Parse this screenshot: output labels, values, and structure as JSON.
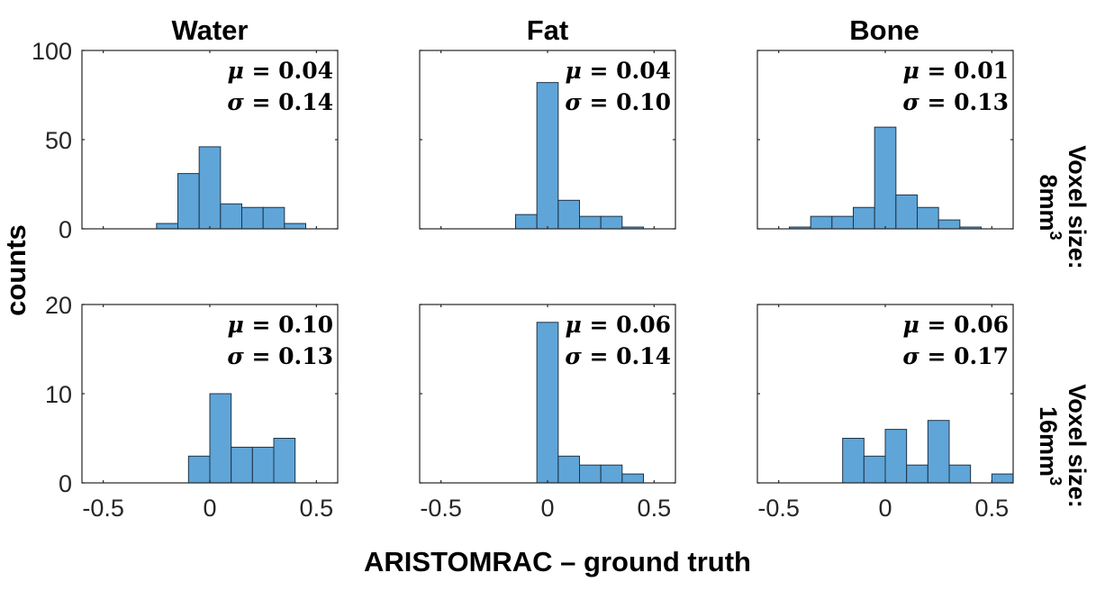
{
  "colors": {
    "bar": "#5fa5d8",
    "edge": "#1f3447",
    "axis": "#262626"
  },
  "chart_data": {
    "type": "bar",
    "layout": "2x3 histogram grid",
    "columns": [
      "Water",
      "Fat",
      "Bone"
    ],
    "rows": [
      {
        "label_line1": "Voxel size:",
        "label_line2": "8mm",
        "label_sup": "3",
        "ylim": [
          0,
          100
        ],
        "yticks": [
          "0",
          "50",
          "100"
        ]
      },
      {
        "label_line1": "Voxel size:",
        "label_line2": "16mm",
        "label_sup": "3",
        "ylim": [
          0,
          20
        ],
        "yticks": [
          "0",
          "10",
          "20"
        ]
      }
    ],
    "xlim": [
      -0.6,
      0.6
    ],
    "xticks": [
      "-0.5",
      "0",
      "0.5"
    ],
    "xtick_values": [
      -0.5,
      0,
      0.5
    ],
    "bin_width": 0.1,
    "xlabel": "ARISTOMRAC – ground truth",
    "ylabel": "counts",
    "panels": [
      {
        "row": 0,
        "col": 0,
        "mu": "0.04",
        "sigma": "0.14",
        "bins": [
          {
            "left": -0.25,
            "count": 3
          },
          {
            "left": -0.15,
            "count": 31
          },
          {
            "left": -0.05,
            "count": 46
          },
          {
            "left": 0.05,
            "count": 14
          },
          {
            "left": 0.15,
            "count": 12
          },
          {
            "left": 0.25,
            "count": 12
          },
          {
            "left": 0.35,
            "count": 3
          }
        ]
      },
      {
        "row": 0,
        "col": 1,
        "mu": "0.04",
        "sigma": "0.10",
        "bins": [
          {
            "left": -0.15,
            "count": 8
          },
          {
            "left": -0.05,
            "count": 82
          },
          {
            "left": 0.05,
            "count": 16
          },
          {
            "left": 0.15,
            "count": 7
          },
          {
            "left": 0.25,
            "count": 7
          },
          {
            "left": 0.35,
            "count": 1
          }
        ]
      },
      {
        "row": 0,
        "col": 2,
        "mu": "0.01",
        "sigma": "0.13",
        "bins": [
          {
            "left": -0.45,
            "count": 1
          },
          {
            "left": -0.35,
            "count": 7
          },
          {
            "left": -0.25,
            "count": 7
          },
          {
            "left": -0.15,
            "count": 12
          },
          {
            "left": -0.05,
            "count": 57
          },
          {
            "left": 0.05,
            "count": 19
          },
          {
            "left": 0.15,
            "count": 12
          },
          {
            "left": 0.25,
            "count": 5
          },
          {
            "left": 0.35,
            "count": 1
          }
        ]
      },
      {
        "row": 1,
        "col": 0,
        "mu": "0.10",
        "sigma": "0.13",
        "bins": [
          {
            "left": -0.1,
            "count": 3
          },
          {
            "left": 0.0,
            "count": 10
          },
          {
            "left": 0.1,
            "count": 4
          },
          {
            "left": 0.2,
            "count": 4
          },
          {
            "left": 0.3,
            "count": 5
          }
        ]
      },
      {
        "row": 1,
        "col": 1,
        "mu": "0.06",
        "sigma": "0.14",
        "bins": [
          {
            "left": -0.05,
            "count": 18
          },
          {
            "left": 0.05,
            "count": 3
          },
          {
            "left": 0.15,
            "count": 2
          },
          {
            "left": 0.25,
            "count": 2
          },
          {
            "left": 0.35,
            "count": 1
          }
        ]
      },
      {
        "row": 1,
        "col": 2,
        "mu": "0.06",
        "sigma": "0.17",
        "bins": [
          {
            "left": -0.2,
            "count": 5
          },
          {
            "left": -0.1,
            "count": 3
          },
          {
            "left": 0.0,
            "count": 6
          },
          {
            "left": 0.1,
            "count": 2
          },
          {
            "left": 0.2,
            "count": 7
          },
          {
            "left": 0.3,
            "count": 2
          },
          {
            "left": 0.5,
            "count": 1
          }
        ]
      }
    ]
  },
  "labels": {
    "mu_symbol": "μ",
    "sigma_symbol": "σ",
    "equals": " = "
  }
}
